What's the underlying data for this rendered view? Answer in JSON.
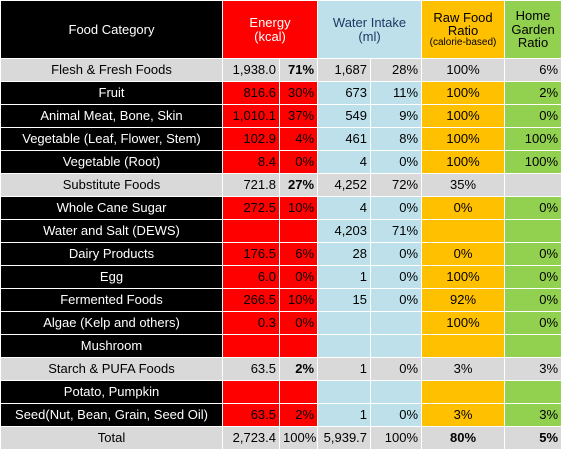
{
  "headers": {
    "category": "Food Category",
    "energy_line1": "Energy",
    "energy_line2": "(kcal)",
    "water_line1": "Water Intake",
    "water_line2": "(ml)",
    "raw_line1": "Raw Food",
    "raw_line2": "Ratio",
    "raw_line3": "(calorie-based)",
    "garden_line1": "Home",
    "garden_line2": "Garden",
    "garden_line3": "Ratio"
  },
  "rows": [
    {
      "name": "Flesh & Fresh Foods",
      "group": true,
      "energy": "1,938.0",
      "energy_pct": "71%",
      "water": "1,687",
      "water_pct": "28%",
      "raw": "100%",
      "garden": "6%"
    },
    {
      "name": "Fruit",
      "group": false,
      "energy": "816.6",
      "energy_pct": "30%",
      "water": "673",
      "water_pct": "11%",
      "raw": "100%",
      "garden": "2%"
    },
    {
      "name": "Animal Meat, Bone, Skin",
      "group": false,
      "energy": "1,010.1",
      "energy_pct": "37%",
      "water": "549",
      "water_pct": "9%",
      "raw": "100%",
      "garden": "0%"
    },
    {
      "name": "Vegetable (Leaf, Flower, Stem)",
      "group": false,
      "energy": "102.9",
      "energy_pct": "4%",
      "water": "461",
      "water_pct": "8%",
      "raw": "100%",
      "garden": "100%"
    },
    {
      "name": "Vegetable (Root)",
      "group": false,
      "energy": "8.4",
      "energy_pct": "0%",
      "water": "4",
      "water_pct": "0%",
      "raw": "100%",
      "garden": "100%"
    },
    {
      "name": "Substitute Foods",
      "group": true,
      "energy": "721.8",
      "energy_pct": "27%",
      "water": "4,252",
      "water_pct": "72%",
      "raw": "35%",
      "garden": ""
    },
    {
      "name": "Whole Cane Sugar",
      "group": false,
      "energy": "272.5",
      "energy_pct": "10%",
      "water": "4",
      "water_pct": "0%",
      "raw": "0%",
      "garden": "0%"
    },
    {
      "name": "Water and Salt (DEWS)",
      "group": false,
      "energy": "",
      "energy_pct": "",
      "water": "4,203",
      "water_pct": "71%",
      "raw": "",
      "garden": ""
    },
    {
      "name": "Dairy Products",
      "group": false,
      "energy": "176.5",
      "energy_pct": "6%",
      "water": "28",
      "water_pct": "0%",
      "raw": "0%",
      "garden": "0%"
    },
    {
      "name": "Egg",
      "group": false,
      "energy": "6.0",
      "energy_pct": "0%",
      "water": "1",
      "water_pct": "0%",
      "raw": "100%",
      "garden": "0%"
    },
    {
      "name": "Fermented Foods",
      "group": false,
      "energy": "266.5",
      "energy_pct": "10%",
      "water": "15",
      "water_pct": "0%",
      "raw": "92%",
      "garden": "0%"
    },
    {
      "name": "Algae (Kelp and others)",
      "group": false,
      "energy": "0.3",
      "energy_pct": "0%",
      "water": "",
      "water_pct": "",
      "raw": "100%",
      "garden": "0%"
    },
    {
      "name": "Mushroom",
      "group": false,
      "energy": "",
      "energy_pct": "",
      "water": "",
      "water_pct": "",
      "raw": "",
      "garden": ""
    },
    {
      "name": "Starch & PUFA Foods",
      "group": true,
      "energy": "63.5",
      "energy_pct": "2%",
      "water": "1",
      "water_pct": "0%",
      "raw": "3%",
      "garden": "3%"
    },
    {
      "name": "Potato, Pumpkin",
      "group": false,
      "energy": "",
      "energy_pct": "",
      "water": "",
      "water_pct": "",
      "raw": "",
      "garden": ""
    },
    {
      "name": "Seed(Nut, Bean, Grain, Seed Oil)",
      "group": false,
      "energy": "63.5",
      "energy_pct": "2%",
      "water": "1",
      "water_pct": "0%",
      "raw": "3%",
      "garden": "3%"
    }
  ],
  "total": {
    "name": "Total",
    "energy": "2,723.4",
    "energy_pct": "100%",
    "water": "5,939.7",
    "water_pct": "100%",
    "raw": "80%",
    "garden": "5%"
  },
  "colors": {
    "red": "#ff0000",
    "blue": "#bde0eb",
    "yellow": "#ffc000",
    "green": "#92d050",
    "gray": "#d9d9d9",
    "black": "#000000"
  }
}
